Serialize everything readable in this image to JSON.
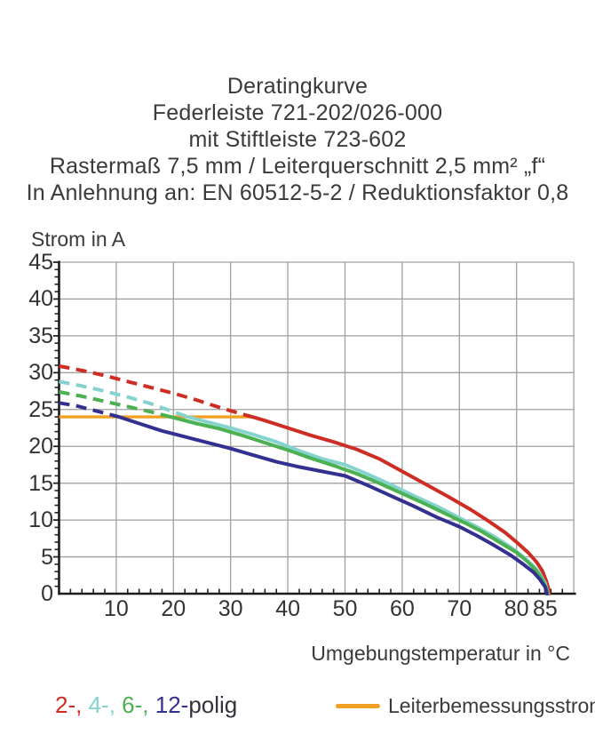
{
  "header": {
    "lines": [
      "Deratingkurve",
      "Federleiste 721-202/026-000",
      "mit Stiftleiste 723-602",
      "Rastermaß 7,5 mm / Leiterquerschnitt 2,5 mm² „f“",
      "In Anlehnung an: EN 60512-5-2 / Reduktionsfaktor 0,8"
    ]
  },
  "chart_data": {
    "type": "line",
    "title": "Deratingkurve",
    "ylabel": "Strom in A",
    "xlabel": "Umgebungstemperatur in °C",
    "xlim": [
      0,
      90
    ],
    "ylim": [
      0,
      45
    ],
    "x_ticks": [
      10,
      20,
      30,
      40,
      50,
      60,
      70,
      80,
      85
    ],
    "y_ticks": [
      0,
      5,
      10,
      15,
      20,
      25,
      30,
      35,
      40,
      45
    ],
    "x_gridlines": [
      10,
      20,
      30,
      40,
      50,
      60,
      70,
      80,
      90
    ],
    "y_gridlines": [
      5,
      10,
      15,
      20,
      25,
      30,
      35,
      40,
      45
    ],
    "x_minor_tick_step": 2,
    "y_minor_tick_step": 1,
    "grid": true,
    "legend_position": "bottom",
    "grid_color": "#a0a0a0",
    "axis_color": "#1c1c1c",
    "rated_current_line": {
      "label": "Leiterbemessungsstrom",
      "color": "#f2a024",
      "value": 24,
      "x_range": [
        0,
        33.8
      ]
    },
    "series": [
      {
        "name": "2-polig",
        "color": "#ce2d24",
        "dashed_points": [
          [
            0,
            30.9
          ],
          [
            4,
            30.3
          ],
          [
            8,
            29.6
          ],
          [
            12,
            28.8
          ],
          [
            16,
            28.0
          ],
          [
            20,
            27.2
          ],
          [
            24,
            26.3
          ],
          [
            28,
            25.3
          ],
          [
            31,
            24.6
          ],
          [
            33.8,
            24.0
          ]
        ],
        "solid_points": [
          [
            33.8,
            24.0
          ],
          [
            36,
            23.5
          ],
          [
            40,
            22.5
          ],
          [
            44,
            21.5
          ],
          [
            48,
            20.6
          ],
          [
            52,
            19.6
          ],
          [
            56,
            18.3
          ],
          [
            60,
            16.6
          ],
          [
            64,
            14.9
          ],
          [
            68,
            13.2
          ],
          [
            72,
            11.4
          ],
          [
            75,
            9.9
          ],
          [
            78,
            8.3
          ],
          [
            80,
            7.0
          ],
          [
            82,
            5.6
          ],
          [
            83.5,
            4.3
          ],
          [
            84.5,
            3.1
          ],
          [
            85.2,
            1.7
          ],
          [
            85.6,
            0.6
          ],
          [
            85.7,
            0
          ]
        ]
      },
      {
        "name": "4-polig",
        "color": "#84d3cf",
        "dashed_points": [
          [
            0,
            28.8
          ],
          [
            4,
            28.2
          ],
          [
            8,
            27.5
          ],
          [
            12,
            26.7
          ],
          [
            16,
            25.8
          ],
          [
            20,
            24.7
          ],
          [
            22.5,
            24.0
          ]
        ],
        "solid_points": [
          [
            22.5,
            24.0
          ],
          [
            26,
            23.3
          ],
          [
            30,
            22.5
          ],
          [
            34,
            21.6
          ],
          [
            38,
            20.6
          ],
          [
            42,
            19.4
          ],
          [
            46,
            18.3
          ],
          [
            50,
            17.5
          ],
          [
            54,
            16.2
          ],
          [
            58,
            14.8
          ],
          [
            62,
            13.3
          ],
          [
            66,
            11.9
          ],
          [
            70,
            10.3
          ],
          [
            73,
            9.1
          ],
          [
            76,
            7.8
          ],
          [
            79,
            6.3
          ],
          [
            81,
            5.1
          ],
          [
            83,
            3.7
          ],
          [
            84,
            2.8
          ],
          [
            85,
            1.4
          ],
          [
            85.5,
            0
          ]
        ]
      },
      {
        "name": "6-polig",
        "color": "#4cb152",
        "dashed_points": [
          [
            0,
            27.4
          ],
          [
            4,
            26.8
          ],
          [
            8,
            26.1
          ],
          [
            12,
            25.4
          ],
          [
            16,
            24.7
          ],
          [
            19.5,
            24.0
          ]
        ],
        "solid_points": [
          [
            19.5,
            24.0
          ],
          [
            24,
            23.1
          ],
          [
            28,
            22.4
          ],
          [
            32,
            21.5
          ],
          [
            36,
            20.5
          ],
          [
            40,
            19.5
          ],
          [
            44,
            18.4
          ],
          [
            48,
            17.4
          ],
          [
            52,
            16.3
          ],
          [
            56,
            15.0
          ],
          [
            60,
            13.6
          ],
          [
            64,
            12.2
          ],
          [
            68,
            10.7
          ],
          [
            71,
            9.6
          ],
          [
            74,
            8.4
          ],
          [
            77,
            7.0
          ],
          [
            80,
            5.6
          ],
          [
            82,
            4.3
          ],
          [
            83.5,
            3.1
          ],
          [
            84.5,
            1.9
          ],
          [
            85.2,
            0.7
          ],
          [
            85.4,
            0
          ]
        ]
      },
      {
        "name": "12-polig",
        "color": "#323090",
        "dashed_points": [
          [
            0,
            25.9
          ],
          [
            3,
            25.5
          ],
          [
            6,
            24.9
          ],
          [
            9,
            24.3
          ],
          [
            10.5,
            24.0
          ]
        ],
        "solid_points": [
          [
            10.5,
            24.0
          ],
          [
            14,
            23.1
          ],
          [
            18,
            22.1
          ],
          [
            22,
            21.3
          ],
          [
            26,
            20.5
          ],
          [
            30,
            19.7
          ],
          [
            34,
            18.8
          ],
          [
            38,
            17.9
          ],
          [
            42,
            17.2
          ],
          [
            46,
            16.6
          ],
          [
            50,
            16.0
          ],
          [
            54,
            14.7
          ],
          [
            58,
            13.3
          ],
          [
            62,
            11.9
          ],
          [
            66,
            10.4
          ],
          [
            70,
            9.1
          ],
          [
            73,
            7.9
          ],
          [
            76,
            6.6
          ],
          [
            79,
            5.2
          ],
          [
            81,
            4.1
          ],
          [
            83,
            2.9
          ],
          [
            84,
            2.0
          ],
          [
            85,
            0.9
          ],
          [
            85.3,
            0
          ]
        ]
      }
    ]
  },
  "legend": {
    "poles": [
      {
        "label": "2-,",
        "color": "#ce2d24"
      },
      {
        "label": "4-,",
        "color": "#84d3cf"
      },
      {
        "label": "6-,",
        "color": "#4cb152"
      },
      {
        "label": "12-",
        "color": "#323090"
      }
    ],
    "suffix": "polig",
    "suffix_color": "#33333b"
  }
}
